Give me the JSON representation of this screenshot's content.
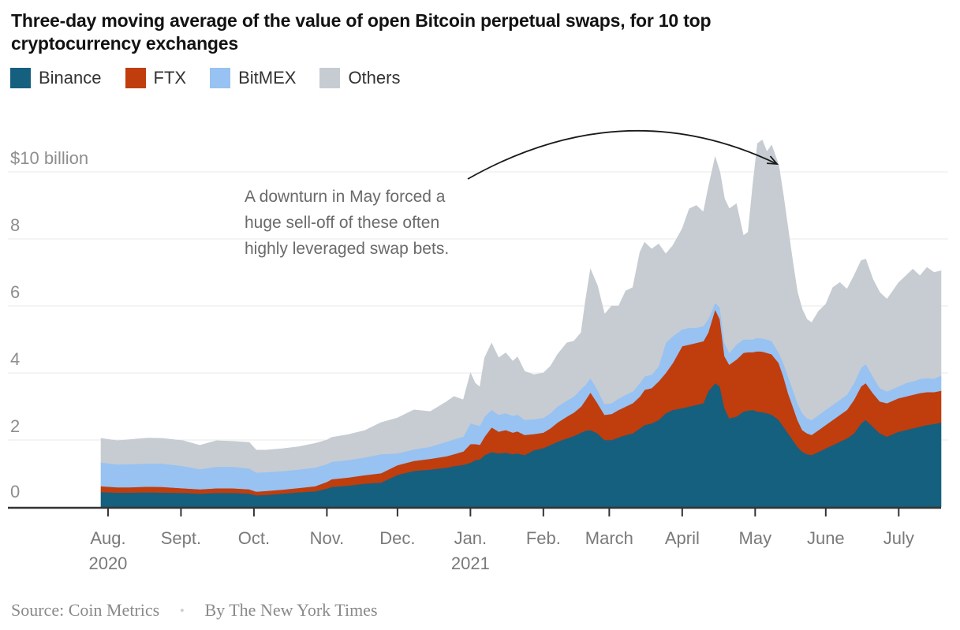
{
  "chart_data": {
    "type": "area",
    "stacked": true,
    "title_lines": [
      "Three-day moving average of the value of open Bitcoin perpetual swaps, for 10 top",
      "cryptocurrency exchanges"
    ],
    "unit": "billions of US dollars",
    "legend_position": "top-left",
    "grid": "horizontal",
    "y_axis": {
      "range": [
        0,
        11.5
      ],
      "ticks": [
        {
          "value": 0,
          "label": "0"
        },
        {
          "value": 2,
          "label": "2"
        },
        {
          "value": 4,
          "label": "4"
        },
        {
          "value": 6,
          "label": "6"
        },
        {
          "value": 8,
          "label": "8"
        },
        {
          "value": 10,
          "label": "$10 billion"
        }
      ]
    },
    "x_axis": {
      "unit": "days from 2020-07-29",
      "range": [
        0,
        357
      ],
      "ticks": [
        {
          "d": 3,
          "label": "Aug.",
          "sublabel": "2020"
        },
        {
          "d": 34,
          "label": "Sept."
        },
        {
          "d": 65,
          "label": "Oct."
        },
        {
          "d": 96,
          "label": "Nov."
        },
        {
          "d": 126,
          "label": "Dec."
        },
        {
          "d": 157,
          "label": "Jan.",
          "sublabel": "2021"
        },
        {
          "d": 188,
          "label": "Feb."
        },
        {
          "d": 216,
          "label": "March"
        },
        {
          "d": 247,
          "label": "April"
        },
        {
          "d": 278,
          "label": "May"
        },
        {
          "d": 308,
          "label": "June"
        },
        {
          "d": 339,
          "label": "July"
        }
      ]
    },
    "series": [
      {
        "name": "Binance",
        "color": "#15607e"
      },
      {
        "name": "FTX",
        "color": "#c03d0e"
      },
      {
        "name": "BitMEX",
        "color": "#97c2f2"
      },
      {
        "name": "Others",
        "color": "#c6ccd2"
      }
    ],
    "columns": [
      "day",
      "Binance",
      "FTX",
      "BitMEX",
      "Others"
    ],
    "samples": [
      [
        0,
        0.45,
        0.17,
        0.71,
        0.72
      ],
      [
        7,
        0.43,
        0.16,
        0.68,
        0.71
      ],
      [
        12,
        0.43,
        0.16,
        0.69,
        0.73
      ],
      [
        20,
        0.44,
        0.17,
        0.69,
        0.76
      ],
      [
        26,
        0.43,
        0.17,
        0.7,
        0.75
      ],
      [
        35,
        0.42,
        0.14,
        0.66,
        0.76
      ],
      [
        42,
        0.4,
        0.13,
        0.6,
        0.71
      ],
      [
        49,
        0.42,
        0.14,
        0.64,
        0.78
      ],
      [
        56,
        0.42,
        0.14,
        0.64,
        0.76
      ],
      [
        63,
        0.4,
        0.13,
        0.62,
        0.78
      ],
      [
        66,
        0.35,
        0.11,
        0.57,
        0.67
      ],
      [
        70,
        0.36,
        0.12,
        0.56,
        0.66
      ],
      [
        77,
        0.4,
        0.12,
        0.55,
        0.67
      ],
      [
        84,
        0.44,
        0.13,
        0.55,
        0.68
      ],
      [
        91,
        0.47,
        0.15,
        0.56,
        0.72
      ],
      [
        96,
        0.55,
        0.2,
        0.53,
        0.72
      ],
      [
        98,
        0.6,
        0.23,
        0.52,
        0.73
      ],
      [
        105,
        0.64,
        0.24,
        0.52,
        0.76
      ],
      [
        112,
        0.7,
        0.25,
        0.53,
        0.8
      ],
      [
        119,
        0.73,
        0.28,
        0.57,
        0.94
      ],
      [
        126,
        0.96,
        0.29,
        0.35,
        1.06
      ],
      [
        133,
        1.08,
        0.3,
        0.34,
        1.18
      ],
      [
        140,
        1.12,
        0.32,
        0.36,
        1.05
      ],
      [
        147,
        1.18,
        0.34,
        0.43,
        1.2
      ],
      [
        150,
        1.22,
        0.36,
        0.44,
        1.28
      ],
      [
        154,
        1.26,
        0.4,
        0.44,
        1.1
      ],
      [
        157,
        1.32,
        0.56,
        0.62,
        1.5
      ],
      [
        159,
        1.4,
        0.48,
        0.58,
        1.24
      ],
      [
        161,
        1.42,
        0.44,
        0.56,
        1.16
      ],
      [
        163,
        1.55,
        0.55,
        0.6,
        1.75
      ],
      [
        166,
        1.64,
        0.74,
        0.52,
        1.99
      ],
      [
        169,
        1.6,
        0.65,
        0.5,
        1.7
      ],
      [
        172,
        1.62,
        0.68,
        0.5,
        1.8
      ],
      [
        175,
        1.58,
        0.64,
        0.5,
        1.63
      ],
      [
        177,
        1.6,
        0.66,
        0.5,
        1.72
      ],
      [
        180,
        1.55,
        0.6,
        0.45,
        1.45
      ],
      [
        184,
        1.7,
        0.48,
        0.44,
        1.33
      ],
      [
        188,
        1.76,
        0.46,
        0.44,
        1.34
      ],
      [
        191,
        1.85,
        0.5,
        0.45,
        1.4
      ],
      [
        194,
        1.95,
        0.57,
        0.48,
        1.55
      ],
      [
        198,
        2.05,
        0.65,
        0.48,
        1.72
      ],
      [
        201,
        2.12,
        0.7,
        0.48,
        1.65
      ],
      [
        204,
        2.22,
        0.78,
        0.52,
        1.68
      ],
      [
        206,
        2.28,
        0.92,
        0.45,
        2.55
      ],
      [
        208,
        2.3,
        1.12,
        0.43,
        3.25
      ],
      [
        211,
        2.2,
        0.9,
        0.4,
        3.1
      ],
      [
        214,
        2.0,
        0.75,
        0.32,
        2.68
      ],
      [
        217,
        2.0,
        0.78,
        0.32,
        2.9
      ],
      [
        220,
        2.08,
        0.82,
        0.34,
        2.76
      ],
      [
        223,
        2.15,
        0.85,
        0.35,
        3.1
      ],
      [
        226,
        2.2,
        0.9,
        0.35,
        3.1
      ],
      [
        229,
        2.35,
        0.95,
        0.4,
        3.9
      ],
      [
        231,
        2.45,
        1.05,
        0.4,
        4.0
      ],
      [
        234,
        2.5,
        1.05,
        0.4,
        3.75
      ],
      [
        237,
        2.6,
        1.15,
        0.45,
        3.65
      ],
      [
        240,
        2.8,
        1.2,
        0.9,
        2.65
      ],
      [
        243,
        2.9,
        1.4,
        0.8,
        2.7
      ],
      [
        247,
        2.95,
        1.85,
        0.5,
        3.0
      ],
      [
        250,
        3.0,
        1.85,
        0.5,
        3.55
      ],
      [
        253,
        3.05,
        1.85,
        0.45,
        3.65
      ],
      [
        256,
        3.1,
        1.85,
        0.45,
        3.4
      ],
      [
        258,
        3.45,
        1.75,
        0.4,
        3.9
      ],
      [
        261,
        3.7,
        2.2,
        0.2,
        4.35
      ],
      [
        263,
        3.6,
        2.0,
        0.35,
        4.05
      ],
      [
        265,
        2.95,
        1.55,
        0.4,
        4.3
      ],
      [
        267,
        2.65,
        1.6,
        0.35,
        4.3
      ],
      [
        270,
        2.7,
        1.7,
        0.45,
        4.2
      ],
      [
        273,
        2.85,
        1.75,
        0.4,
        3.1
      ],
      [
        275,
        2.88,
        1.74,
        0.38,
        3.2
      ],
      [
        277,
        2.9,
        1.72,
        0.38,
        4.6
      ],
      [
        279,
        2.85,
        1.8,
        0.4,
        5.8
      ],
      [
        281,
        2.83,
        1.81,
        0.39,
        5.92
      ],
      [
        283,
        2.8,
        1.8,
        0.4,
        5.6
      ],
      [
        285,
        2.76,
        1.8,
        0.4,
        5.84
      ],
      [
        288,
        2.6,
        1.7,
        0.3,
        5.6
      ],
      [
        290,
        2.4,
        1.5,
        0.4,
        5.0
      ],
      [
        292,
        2.2,
        1.2,
        0.5,
        4.4
      ],
      [
        294,
        2.0,
        1.0,
        0.5,
        3.8
      ],
      [
        296,
        1.8,
        0.8,
        0.5,
        3.3
      ],
      [
        298,
        1.65,
        0.65,
        0.5,
        3.1
      ],
      [
        300,
        1.58,
        0.62,
        0.45,
        2.95
      ],
      [
        302,
        1.55,
        0.6,
        0.45,
        2.9
      ],
      [
        305,
        1.65,
        0.65,
        0.45,
        3.1
      ],
      [
        308,
        1.75,
        0.7,
        0.45,
        3.15
      ],
      [
        311,
        1.85,
        0.75,
        0.45,
        3.5
      ],
      [
        314,
        1.95,
        0.8,
        0.45,
        3.5
      ],
      [
        317,
        2.05,
        0.85,
        0.45,
        3.15
      ],
      [
        320,
        2.2,
        1.0,
        0.5,
        3.2
      ],
      [
        323,
        2.5,
        1.1,
        0.55,
        3.2
      ],
      [
        325,
        2.6,
        1.1,
        0.57,
        3.13
      ],
      [
        328,
        2.4,
        1.0,
        0.5,
        2.9
      ],
      [
        331,
        2.2,
        0.95,
        0.4,
        2.85
      ],
      [
        334,
        2.1,
        1.0,
        0.35,
        2.75
      ],
      [
        339,
        2.25,
        1.0,
        0.35,
        3.1
      ],
      [
        342,
        2.3,
        1.0,
        0.4,
        3.2
      ],
      [
        345,
        2.35,
        1.0,
        0.4,
        3.35
      ],
      [
        348,
        2.4,
        1.0,
        0.42,
        3.08
      ],
      [
        351,
        2.45,
        0.98,
        0.42,
        3.3
      ],
      [
        354,
        2.48,
        0.95,
        0.4,
        3.17
      ],
      [
        357,
        2.52,
        0.95,
        0.45,
        3.13
      ]
    ],
    "annotation": {
      "lines": [
        "A downturn in May forced a",
        "huge sell-off of these often",
        "highly leveraged swap bets."
      ],
      "arrow_points_to": "May peak"
    }
  },
  "footer": {
    "source": "Source: Coin Metrics",
    "separator": "•",
    "byline": "By The New York Times"
  }
}
